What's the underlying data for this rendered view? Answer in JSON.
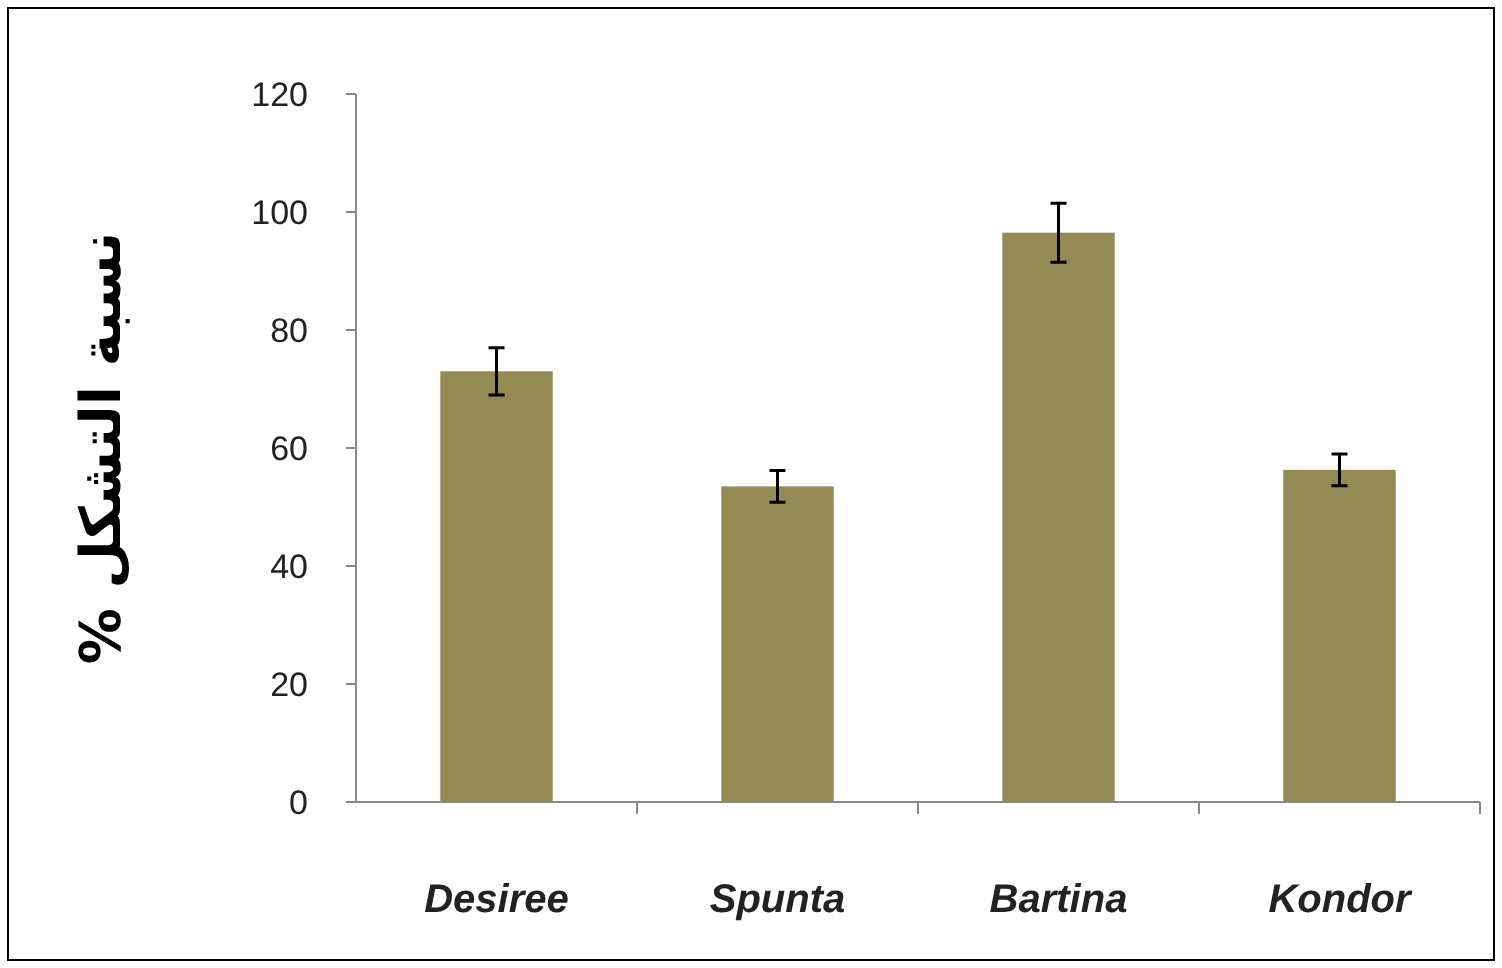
{
  "chart_data": {
    "type": "bar",
    "ylabel": "نسبة التشكل %",
    "categories": [
      "Desiree",
      "Spunta",
      "Bartina",
      "Kondor"
    ],
    "values": [
      73,
      53.5,
      96.5,
      56.3
    ],
    "errors": [
      4,
      2.7,
      5,
      2.7
    ],
    "color": "#948a54",
    "ylim": [
      0,
      120
    ],
    "yticks": [
      0,
      20,
      40,
      60,
      80,
      100,
      120
    ],
    "grid": false
  }
}
